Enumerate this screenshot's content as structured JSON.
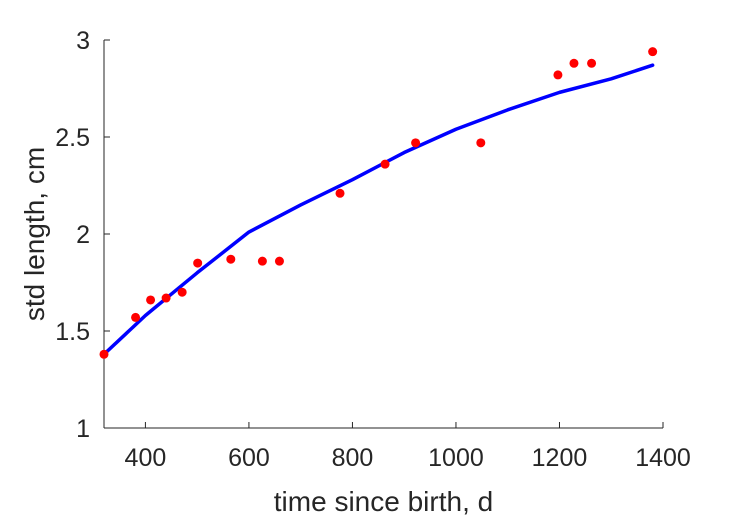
{
  "chart_data": {
    "type": "scatter",
    "xlabel": "time since birth, d",
    "ylabel": "std length, cm",
    "xlim": [
      320,
      1400
    ],
    "ylim": [
      1,
      3
    ],
    "xticks": [
      400,
      600,
      800,
      1000,
      1200,
      1400
    ],
    "yticks": [
      1,
      1.5,
      2,
      2.5,
      3
    ],
    "grid": false,
    "series": [
      {
        "kind": "points",
        "color": "#ff0000",
        "x": [
          320,
          381,
          410,
          440,
          471,
          501,
          565,
          626,
          659,
          776,
          863,
          922,
          1048,
          1197,
          1228,
          1262,
          1380
        ],
        "y": [
          1.38,
          1.57,
          1.66,
          1.67,
          1.7,
          1.85,
          1.87,
          1.86,
          1.86,
          2.21,
          2.36,
          2.47,
          2.47,
          2.82,
          2.88,
          2.88,
          2.94
        ]
      },
      {
        "kind": "line",
        "color": "#0000ff",
        "x": [
          320,
          400,
          500,
          600,
          700,
          800,
          900,
          1000,
          1100,
          1200,
          1300,
          1380
        ],
        "y": [
          1.38,
          1.58,
          1.8,
          2.01,
          2.15,
          2.28,
          2.42,
          2.54,
          2.64,
          2.73,
          2.8,
          2.87
        ]
      }
    ]
  }
}
